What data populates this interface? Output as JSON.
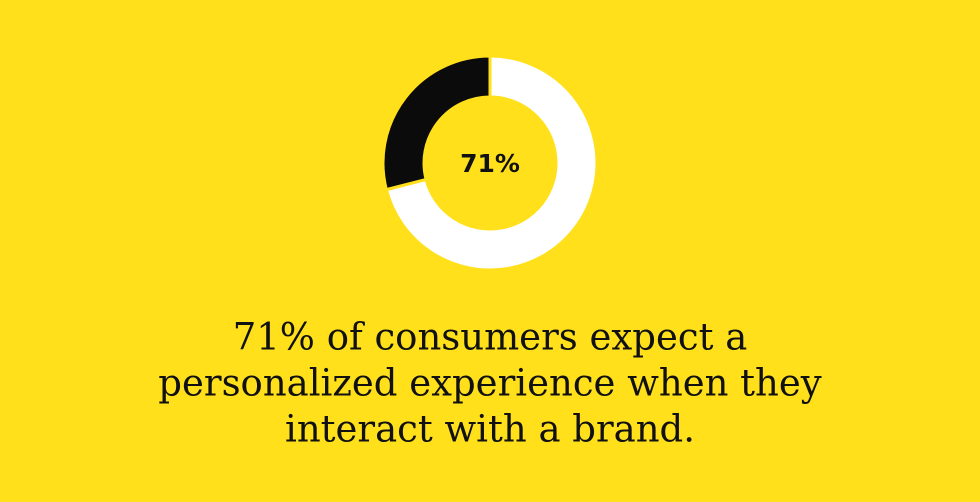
{
  "chart_data": {
    "type": "donut",
    "values": [
      71,
      29
    ],
    "value_labels": [
      "71%",
      null
    ],
    "colors": [
      "#ffffff",
      "#0b0b0b"
    ],
    "caption": [
      "71% of consumers expect a",
      "personalized experience when they",
      "interact with a brand."
    ]
  }
}
